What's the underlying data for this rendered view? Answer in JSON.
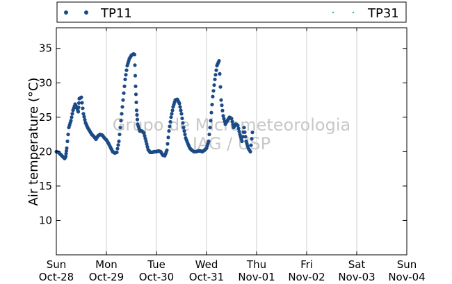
{
  "chart_data": {
    "type": "scatter",
    "ylabel": "Air temperature (°C)",
    "ylim": [
      5,
      38
    ],
    "y_ticks": [
      10,
      15,
      20,
      25,
      30,
      35
    ],
    "xlim": [
      "2012-10-28 00:00",
      "2012-11-04 00:00"
    ],
    "x_ticks": [
      {
        "day": "Sun",
        "date": "Oct-28"
      },
      {
        "day": "Mon",
        "date": "Oct-29"
      },
      {
        "day": "Tue",
        "date": "Oct-30"
      },
      {
        "day": "Wed",
        "date": "Oct-31"
      },
      {
        "day": "Thu",
        "date": "Nov-01"
      },
      {
        "day": "Fri",
        "date": "Nov-02"
      },
      {
        "day": "Sat",
        "date": "Nov-03"
      },
      {
        "day": "Sun",
        "date": "Nov-04"
      }
    ],
    "grid": "vertical",
    "legend_position": "top",
    "watermark": [
      "Grupo de Micrometeorologia",
      "IAG / USP"
    ],
    "series": [
      {
        "name": "TP11",
        "color": "#1b4a86",
        "marker": "circle",
        "x_unit": "hours since Oct-28 00:00",
        "points": [
          [
            0,
            20.0
          ],
          [
            1,
            19.9
          ],
          [
            2,
            19.6
          ],
          [
            3,
            19.3
          ],
          [
            4,
            19.0
          ],
          [
            4.5,
            19.3
          ],
          [
            5,
            20.5
          ],
          [
            6,
            23.5
          ],
          [
            7,
            24.5
          ],
          [
            8,
            26.0
          ],
          [
            9,
            26.9
          ],
          [
            10,
            26.3
          ],
          [
            10.5,
            25.8
          ],
          [
            11,
            27.7
          ],
          [
            12,
            27.9
          ],
          [
            13,
            25.5
          ],
          [
            14,
            24.2
          ],
          [
            15,
            23.5
          ],
          [
            16,
            23.0
          ],
          [
            17,
            22.5
          ],
          [
            18,
            22.2
          ],
          [
            19,
            21.8
          ],
          [
            20,
            22.3
          ],
          [
            21,
            22.5
          ],
          [
            22,
            22.4
          ],
          [
            23,
            22.0
          ],
          [
            24,
            21.7
          ],
          [
            25,
            21.2
          ],
          [
            26,
            20.6
          ],
          [
            27,
            20.0
          ],
          [
            28,
            19.8
          ],
          [
            29,
            19.9
          ],
          [
            30,
            21.5
          ],
          [
            31,
            24.5
          ],
          [
            32,
            27.5
          ],
          [
            33,
            30.5
          ],
          [
            34,
            32.5
          ],
          [
            35,
            33.5
          ],
          [
            36,
            34.0
          ],
          [
            37,
            34.2
          ],
          [
            37.5,
            34.1
          ],
          [
            38,
            29.5
          ],
          [
            38.5,
            26.0
          ],
          [
            39,
            24.0
          ],
          [
            40,
            23.0
          ],
          [
            41,
            23.0
          ],
          [
            42,
            22.7
          ],
          [
            43,
            21.5
          ],
          [
            44,
            20.3
          ],
          [
            45,
            19.9
          ],
          [
            46,
            19.9
          ],
          [
            47,
            20.0
          ],
          [
            48,
            20.0
          ],
          [
            49,
            20.1
          ],
          [
            50,
            20.0
          ],
          [
            51,
            19.5
          ],
          [
            52,
            19.4
          ],
          [
            53,
            20.2
          ],
          [
            54,
            23.0
          ],
          [
            55,
            25.0
          ],
          [
            56,
            26.5
          ],
          [
            57,
            27.5
          ],
          [
            58,
            27.6
          ],
          [
            59,
            27.0
          ],
          [
            60,
            25.5
          ],
          [
            61,
            23.5
          ],
          [
            62,
            22.0
          ],
          [
            63,
            21.2
          ],
          [
            64,
            20.5
          ],
          [
            65,
            20.2
          ],
          [
            66,
            20.0
          ],
          [
            67,
            20.0
          ],
          [
            68,
            20.1
          ],
          [
            69,
            20.1
          ],
          [
            70,
            20.0
          ],
          [
            71,
            20.2
          ],
          [
            72,
            20.5
          ],
          [
            73,
            21.5
          ],
          [
            74,
            24.5
          ],
          [
            75,
            28.0
          ],
          [
            76,
            30.5
          ],
          [
            77,
            32.5
          ],
          [
            78,
            33.2
          ],
          [
            79,
            27.5
          ],
          [
            80,
            25.2
          ],
          [
            81,
            24.0
          ],
          [
            82,
            24.5
          ],
          [
            83,
            25.0
          ],
          [
            84,
            24.8
          ],
          [
            85,
            23.5
          ],
          [
            86,
            24.0
          ],
          [
            87,
            23.8
          ],
          [
            88,
            22.5
          ],
          [
            89,
            21.5
          ],
          [
            90,
            23.5
          ],
          [
            91,
            21.5
          ],
          [
            92,
            20.5
          ],
          [
            93,
            20.0
          ],
          [
            94,
            22.8
          ]
        ]
      },
      {
        "name": "TP31",
        "color": "#2ab0a8",
        "marker": "point",
        "x_unit": "hours since Oct-28 00:00",
        "points": []
      }
    ]
  }
}
